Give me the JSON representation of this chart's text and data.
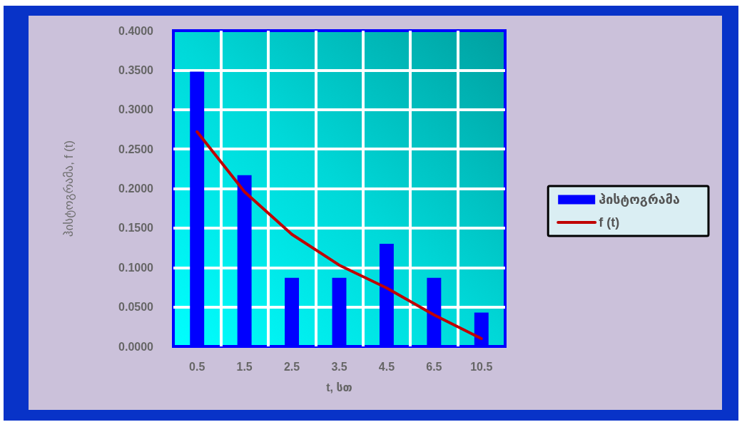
{
  "chart_data": {
    "type": "bar",
    "xlabel": "t, სთ",
    "ylabel": "ჰისტოგრამა, f (t)",
    "categories": [
      "0.5",
      "1.5",
      "2.5",
      "3.5",
      "4.5",
      "6.5",
      "10.5"
    ],
    "series": [
      {
        "name": "ჰისტოგრამა",
        "color": "#0000ff",
        "values": [
          0.348,
          0.217,
          0.087,
          0.087,
          0.13,
          0.087,
          0.043
        ]
      },
      {
        "name": "f (t)",
        "type": "line",
        "color": "#c00000",
        "values": [
          0.272,
          0.196,
          0.142,
          0.103,
          0.074,
          0.04,
          0.01
        ]
      }
    ],
    "ylim": [
      0,
      0.4
    ],
    "yticks": [
      {
        "value": 0,
        "label": "0.0000"
      },
      {
        "value": 0.05,
        "label": "0.0500"
      },
      {
        "value": 0.1,
        "label": "0.1000"
      },
      {
        "value": 0.15,
        "label": "0.1500"
      },
      {
        "value": 0.2,
        "label": "0.2000"
      },
      {
        "value": 0.25,
        "label": "0.2500"
      },
      {
        "value": 0.3,
        "label": "0.3000"
      },
      {
        "value": 0.35,
        "label": "0.3500"
      },
      {
        "value": 0.4,
        "label": "0.4000"
      }
    ],
    "grid": true,
    "legend": "right",
    "marker": "none",
    "line_style": "solid"
  }
}
